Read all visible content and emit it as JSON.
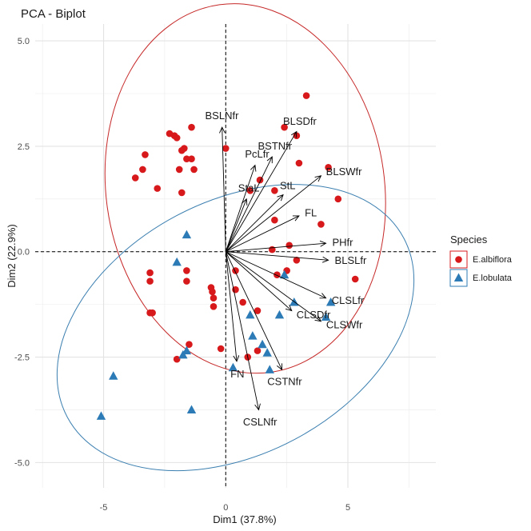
{
  "chart_data": {
    "type": "scatter",
    "title": "PCA - Biplot",
    "xlabel": "Dim1 (37.8%)",
    "ylabel": "Dim2 (22.9%)",
    "xlim": [
      -7.8,
      8.6
    ],
    "ylim": [
      -5.6,
      5.4
    ],
    "xticks": [
      -5,
      0,
      5
    ],
    "yticks": [
      -5.0,
      -2.5,
      0.0,
      2.5,
      5.0
    ],
    "xtick_labels": [
      "-5",
      "0",
      "5"
    ],
    "ytick_labels": [
      "-5.0",
      "-2.5",
      "0.0",
      "2.5",
      "5.0"
    ],
    "grid": true,
    "legend": {
      "title": "Species",
      "position": "right",
      "entries": [
        "E.albiflora",
        "E.lobulata"
      ]
    },
    "colors": {
      "E.albiflora": "#d7191c",
      "E.lobulata": "#2c7bb6",
      "ellipse_albiflora": "#c62828",
      "ellipse_lobulata": "#3b7fb0",
      "arrow": "#000000"
    },
    "series": [
      {
        "name": "E.albiflora",
        "marker": "circle",
        "points": [
          [
            -2.3,
            2.8
          ],
          [
            -2.1,
            2.75
          ],
          [
            -2.0,
            2.7
          ],
          [
            -1.8,
            2.4
          ],
          [
            -1.7,
            2.45
          ],
          [
            -1.6,
            2.2
          ],
          [
            -1.4,
            2.2
          ],
          [
            -1.3,
            1.95
          ],
          [
            -1.9,
            1.95
          ],
          [
            -3.3,
            2.3
          ],
          [
            -3.4,
            1.95
          ],
          [
            -3.7,
            1.75
          ],
          [
            -2.8,
            1.5
          ],
          [
            -1.8,
            1.4
          ],
          [
            -1.4,
            2.95
          ],
          [
            0.0,
            2.45
          ],
          [
            1.4,
            1.7
          ],
          [
            1.0,
            1.45
          ],
          [
            2.4,
            2.95
          ],
          [
            2.9,
            2.75
          ],
          [
            3.3,
            3.7
          ],
          [
            3.0,
            2.1
          ],
          [
            4.2,
            2.0
          ],
          [
            4.6,
            1.25
          ],
          [
            2.0,
            1.45
          ],
          [
            2.0,
            0.75
          ],
          [
            3.9,
            0.65
          ],
          [
            1.9,
            0.05
          ],
          [
            2.6,
            0.15
          ],
          [
            2.9,
            -0.2
          ],
          [
            2.1,
            -0.55
          ],
          [
            2.5,
            -0.45
          ],
          [
            5.3,
            -0.65
          ],
          [
            -3.1,
            -0.5
          ],
          [
            -3.1,
            -0.7
          ],
          [
            -1.6,
            -0.45
          ],
          [
            -1.6,
            -0.7
          ],
          [
            -0.6,
            -0.85
          ],
          [
            -0.55,
            -0.95
          ],
          [
            -0.5,
            -1.1
          ],
          [
            -0.5,
            -1.3
          ],
          [
            0.4,
            -0.9
          ],
          [
            0.7,
            -1.2
          ],
          [
            1.3,
            -1.4
          ],
          [
            -3.1,
            -1.45
          ],
          [
            -3.0,
            -1.45
          ],
          [
            0.4,
            -0.45
          ],
          [
            -1.5,
            -2.2
          ],
          [
            -2.0,
            -2.55
          ],
          [
            1.3,
            -2.35
          ],
          [
            -0.2,
            -2.3
          ],
          [
            0.9,
            -2.5
          ]
        ]
      },
      {
        "name": "E.lobulata",
        "marker": "triangle",
        "points": [
          [
            -1.6,
            0.4
          ],
          [
            -2.0,
            -0.25
          ],
          [
            2.4,
            -0.55
          ],
          [
            2.8,
            -1.2
          ],
          [
            4.3,
            -1.2
          ],
          [
            4.1,
            -1.55
          ],
          [
            2.2,
            -1.5
          ],
          [
            1.0,
            -1.5
          ],
          [
            1.1,
            -2.0
          ],
          [
            1.5,
            -2.2
          ],
          [
            1.7,
            -2.4
          ],
          [
            -1.6,
            -2.35
          ],
          [
            -1.75,
            -2.45
          ],
          [
            0.3,
            -2.75
          ],
          [
            1.8,
            -2.8
          ],
          [
            -4.6,
            -2.95
          ],
          [
            -1.4,
            -3.75
          ],
          [
            -5.1,
            -3.9
          ]
        ]
      }
    ],
    "ellipses": [
      {
        "name": "E.albiflora",
        "center": [
          0.8,
          1.5
        ],
        "width": 11.4,
        "height": 8.8,
        "angle": 8
      },
      {
        "name": "E.lobulata",
        "center": [
          0.4,
          -1.8
        ],
        "width": 15.6,
        "height": 6.0,
        "angle": 28
      }
    ],
    "loadings": [
      {
        "name": "BSLNfr",
        "x": -0.15,
        "y": 2.95
      },
      {
        "name": "BLSDfr",
        "x": 2.9,
        "y": 2.85
      },
      {
        "name": "BSTNfr",
        "x": 1.9,
        "y": 2.25
      },
      {
        "name": "BLSWfr",
        "x": 3.9,
        "y": 1.8
      },
      {
        "name": "PcLfr",
        "x": 1.2,
        "y": 2.05
      },
      {
        "name": "StaL",
        "x": 0.85,
        "y": 1.25
      },
      {
        "name": "StL",
        "x": 2.35,
        "y": 1.35
      },
      {
        "name": "FL",
        "x": 3.0,
        "y": 0.85
      },
      {
        "name": "PHfr",
        "x": 4.1,
        "y": 0.2
      },
      {
        "name": "BLSLfr",
        "x": 4.2,
        "y": -0.2
      },
      {
        "name": "CLSLfr",
        "x": 4.1,
        "y": -1.1
      },
      {
        "name": "CLSWfr",
        "x": 3.9,
        "y": -1.65
      },
      {
        "name": "CLSDfr",
        "x": 2.7,
        "y": -1.4
      },
      {
        "name": "CSTNfr",
        "x": 2.3,
        "y": -2.8
      },
      {
        "name": "FN",
        "x": 0.45,
        "y": -2.6
      },
      {
        "name": "CSLNfr",
        "x": 1.35,
        "y": -3.75
      }
    ]
  }
}
